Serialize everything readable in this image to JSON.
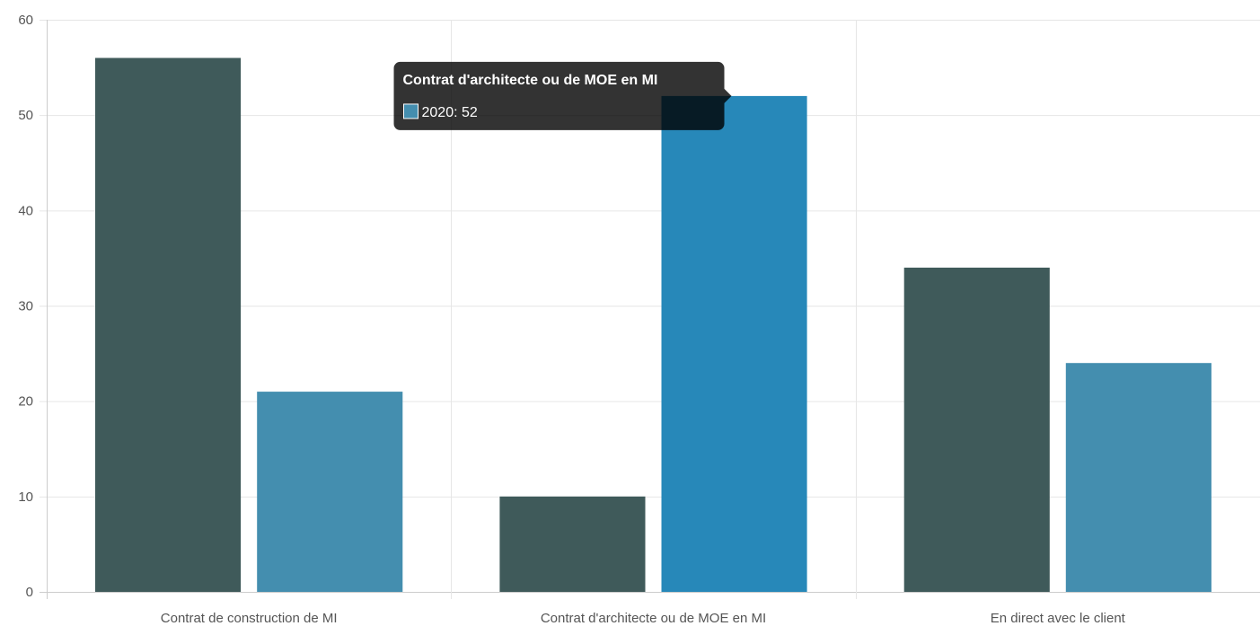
{
  "chart_data": {
    "type": "bar",
    "categories": [
      "Contrat de construction de MI",
      "Contrat d'architecte ou de MOE en MI",
      "En direct avec le client"
    ],
    "series": [
      {
        "values": [
          56,
          10,
          34
        ],
        "color": "#3f5a5a"
      },
      {
        "name": "2020",
        "values": [
          21,
          52,
          24
        ],
        "color": "#448eaf",
        "hover_color": "#2788b9"
      }
    ],
    "ylim": [
      0,
      60
    ],
    "yticks": [
      0,
      10,
      20,
      30,
      40,
      50,
      60
    ],
    "grid": true,
    "legend": "none",
    "tooltip": {
      "title": "Contrat d'architecte ou de MOE en MI",
      "body": "2020: 52",
      "swatch_color": "#448eaf",
      "category_index": 1,
      "series_index": 1
    }
  }
}
